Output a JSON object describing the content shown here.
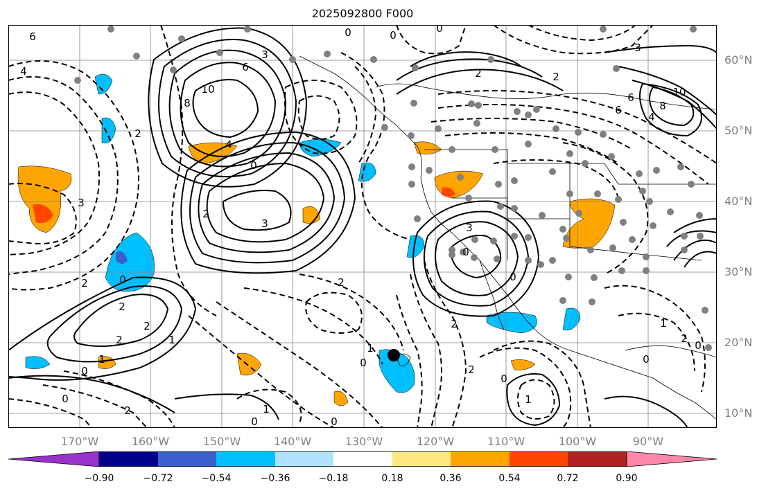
{
  "title": "2025092800 F000",
  "latitude_labels": [
    "60°N",
    "50°N",
    "40°N",
    "30°N",
    "20°N",
    "10°N"
  ],
  "longitude_labels": [
    "170°W",
    "160°W",
    "150°W",
    "140°W",
    "130°W",
    "120°W",
    "110°W",
    "100°W",
    "90°W"
  ],
  "colorbar": {
    "tick_labels": [
      "−0.90",
      "−0.72",
      "−0.54",
      "−0.36",
      "−0.18",
      "0.18",
      "0.36",
      "0.54",
      "0.72",
      "0.90"
    ],
    "colors": [
      "#9932cc",
      "#00008b",
      "#3a5fcd",
      "#00bfff",
      "#b0e2ff",
      "#ffffff",
      "#ffe680",
      "#ffa500",
      "#ff4500",
      "#b22222",
      "#ff88aa"
    ]
  },
  "contour_labels": [
    "6",
    "4",
    "3",
    "6",
    "10",
    "8",
    "4",
    "2",
    "3",
    "2",
    "2",
    "0",
    "2",
    "2",
    "1",
    "0",
    "2",
    "1",
    "0",
    "3",
    "0",
    "0",
    "2",
    "0",
    "1",
    "2",
    "0",
    "1",
    "0",
    "2",
    "0",
    "0",
    "0",
    "3",
    "6",
    "10",
    "8",
    "2",
    "4",
    "2",
    "3",
    "6",
    "0",
    "2",
    "0",
    "1",
    "2",
    "0",
    "1",
    "0"
  ],
  "colors": {
    "contour": "#000000",
    "grid": "#808080",
    "station": "#808080",
    "marker": "#000000",
    "positive_shade": "#ffa500",
    "negative_shade": "#00bfff"
  }
}
